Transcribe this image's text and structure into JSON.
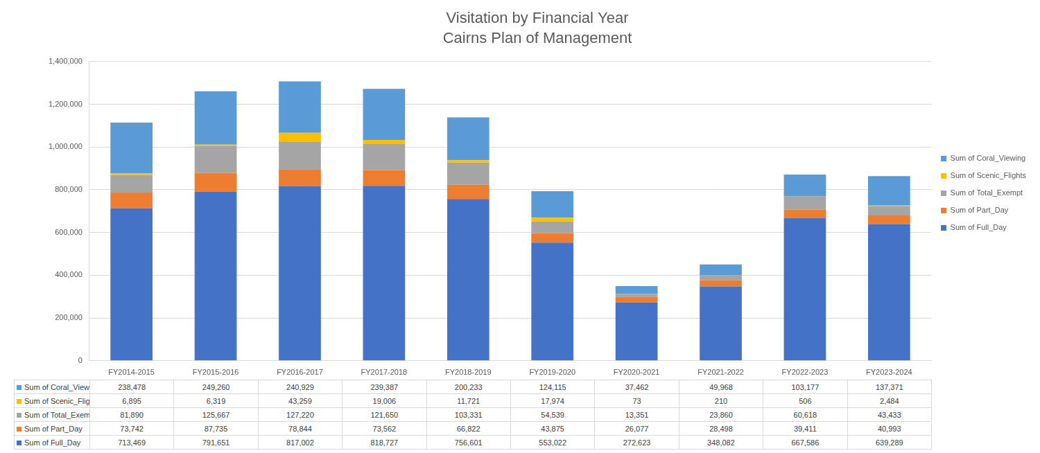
{
  "chart_data": {
    "type": "bar",
    "title": "Visitation by Financial Year",
    "subtitle": "Cairns Plan of Management",
    "categories": [
      "FY2014-2015",
      "FY2015-2016",
      "FY2016-2017",
      "FY2017-2018",
      "FY2018-2019",
      "FY2019-2020",
      "FY2020-2021",
      "FY2021-2022",
      "FY2022-2023",
      "FY2023-2024"
    ],
    "series": [
      {
        "name": "Sum of Full_Day",
        "color": "#4472c4",
        "values": [
          713469,
          791651,
          817002,
          818727,
          756601,
          553022,
          272623,
          348082,
          667586,
          639289
        ],
        "value_labels": [
          "713,469",
          "791,651",
          "817,002",
          "818,727",
          "756,601",
          "553,022",
          "272,623",
          "348,082",
          "667,586",
          "639,289"
        ]
      },
      {
        "name": "Sum of Part_Day",
        "color": "#ed7d31",
        "values": [
          73742,
          87735,
          78844,
          73562,
          66822,
          43875,
          26077,
          28498,
          39411,
          40993
        ],
        "value_labels": [
          "73,742",
          "87,735",
          "78,844",
          "73,562",
          "66,822",
          "43,875",
          "26,077",
          "28,498",
          "39,411",
          "40,993"
        ]
      },
      {
        "name": "Sum of Total_Exempt",
        "color": "#a5a5a5",
        "values": [
          81890,
          125667,
          127220,
          121650,
          103331,
          54539,
          13351,
          23860,
          60618,
          43433
        ],
        "value_labels": [
          "81,890",
          "125,667",
          "127,220",
          "121,650",
          "103,331",
          "54,539",
          "13,351",
          "23,860",
          "60,618",
          "43,433"
        ]
      },
      {
        "name": "Sum of Scenic_Flights",
        "color": "#ffc000",
        "values": [
          6895,
          6319,
          43259,
          19006,
          11721,
          17974,
          73,
          210,
          506,
          2484
        ],
        "value_labels": [
          "6,895",
          "6,319",
          "43,259",
          "19,006",
          "11,721",
          "17,974",
          "73",
          "210",
          "506",
          "2,484"
        ]
      },
      {
        "name": "Sum of Coral_Viewing",
        "color": "#5b9bd5",
        "values": [
          238478,
          249260,
          240929,
          239387,
          200233,
          124115,
          37462,
          49968,
          103177,
          137371
        ],
        "value_labels": [
          "238,478",
          "249,260",
          "240,929",
          "239,387",
          "200,233",
          "124,115",
          "37,462",
          "49,968",
          "103,177",
          "137,371"
        ]
      }
    ],
    "stacked": true,
    "ylim": [
      0,
      1400000
    ],
    "yticks": [
      0,
      {
        "value": 200000,
        "label": "200,000"
      },
      {
        "value": 400000,
        "label": "400,000"
      },
      {
        "value": 600000,
        "label": "600,000"
      },
      {
        "value": 800000,
        "label": "800,000"
      },
      {
        "value": 1000000,
        "label": "1,000,000"
      },
      {
        "value": 1200000,
        "label": "1,200,000"
      },
      {
        "value": 1400000,
        "label": "1,400,000"
      }
    ],
    "grid": true,
    "legend": "right"
  }
}
